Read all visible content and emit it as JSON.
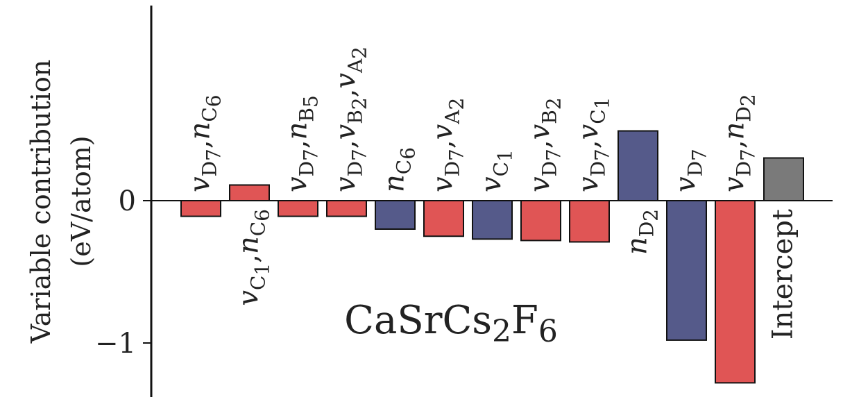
{
  "chart_data": {
    "type": "bar",
    "title": "",
    "ylabel": [
      "Variable contribution",
      "(eV/atom)"
    ],
    "annotation": {
      "main": "CaSrCs",
      "parts": [
        {
          "sub": "2"
        },
        {
          "text": "F"
        },
        {
          "sub": "6"
        }
      ]
    },
    "ylim": [
      -1.35,
      1.35
    ],
    "yticks": [
      {
        "value": 0,
        "label": "0"
      },
      {
        "value": -1,
        "label": "−1"
      }
    ],
    "grid": false,
    "legend": "none",
    "colors": {
      "red": "#e05555",
      "blue": "#555a8a",
      "gray": "#7a7a7a"
    },
    "bars": [
      {
        "value": -0.11,
        "color": "red",
        "label": [
          {
            "t": "v"
          },
          {
            "s": "D"
          },
          {
            "s2": "7"
          },
          {
            "t": ","
          },
          {
            "t": "n"
          },
          {
            "s": "C"
          },
          {
            "s2": "6"
          }
        ]
      },
      {
        "value": 0.11,
        "color": "red",
        "label": [
          {
            "t": "v"
          },
          {
            "s": "C"
          },
          {
            "s2": "1"
          },
          {
            "t": ","
          },
          {
            "t": "n"
          },
          {
            "s": "C"
          },
          {
            "s2": "6"
          }
        ]
      },
      {
        "value": -0.11,
        "color": "red",
        "label": [
          {
            "t": "v"
          },
          {
            "s": "D"
          },
          {
            "s2": "7"
          },
          {
            "t": ","
          },
          {
            "t": "n"
          },
          {
            "s": "B"
          },
          {
            "s2": "5"
          }
        ]
      },
      {
        "value": -0.11,
        "color": "red",
        "label": [
          {
            "t": "v"
          },
          {
            "s": "D"
          },
          {
            "s2": "7"
          },
          {
            "t": ","
          },
          {
            "t": "v"
          },
          {
            "s": "B"
          },
          {
            "s2": "2"
          },
          {
            "t": ","
          },
          {
            "t": "v"
          },
          {
            "s": "A"
          },
          {
            "s2": "2"
          }
        ]
      },
      {
        "value": -0.2,
        "color": "blue",
        "label": [
          {
            "t": "n"
          },
          {
            "s": "C"
          },
          {
            "s2": "6"
          }
        ]
      },
      {
        "value": -0.25,
        "color": "red",
        "label": [
          {
            "t": "v"
          },
          {
            "s": "D"
          },
          {
            "s2": "7"
          },
          {
            "t": ","
          },
          {
            "t": "v"
          },
          {
            "s": "A"
          },
          {
            "s2": "2"
          }
        ]
      },
      {
        "value": -0.27,
        "color": "blue",
        "label": [
          {
            "t": "v"
          },
          {
            "s": "C"
          },
          {
            "s2": "1"
          }
        ]
      },
      {
        "value": -0.28,
        "color": "red",
        "label": [
          {
            "t": "v"
          },
          {
            "s": "D"
          },
          {
            "s2": "7"
          },
          {
            "t": ","
          },
          {
            "t": "v"
          },
          {
            "s": "B"
          },
          {
            "s2": "2"
          }
        ]
      },
      {
        "value": -0.29,
        "color": "red",
        "label": [
          {
            "t": "v"
          },
          {
            "s": "D"
          },
          {
            "s2": "7"
          },
          {
            "t": ","
          },
          {
            "t": "v"
          },
          {
            "s": "C"
          },
          {
            "s2": "1"
          }
        ]
      },
      {
        "value": 0.49,
        "color": "blue",
        "label": [
          {
            "t": "n"
          },
          {
            "s": "D"
          },
          {
            "s2": "2"
          }
        ]
      },
      {
        "value": -0.98,
        "color": "blue",
        "label": [
          {
            "t": "v"
          },
          {
            "s": "D"
          },
          {
            "s2": "7"
          }
        ]
      },
      {
        "value": -1.28,
        "color": "red",
        "label": [
          {
            "t": "v"
          },
          {
            "s": "D"
          },
          {
            "s2": "7"
          },
          {
            "t": ","
          },
          {
            "t": "n"
          },
          {
            "s": "D"
          },
          {
            "s2": "2"
          }
        ]
      },
      {
        "value": 0.3,
        "color": "gray",
        "label": [
          {
            "t": "Intercept"
          }
        ]
      }
    ]
  }
}
